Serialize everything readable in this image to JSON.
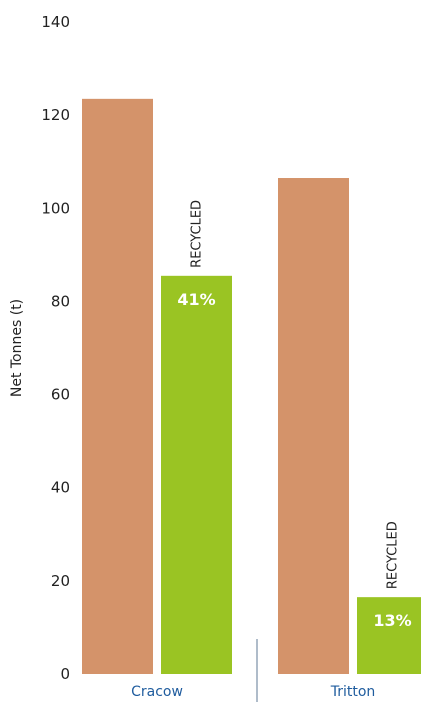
{
  "chart_data": {
    "type": "bar",
    "title": "",
    "xlabel": "",
    "ylabel": "Net Tonnes (t)",
    "ylim": [
      0,
      140
    ],
    "yticks": [
      0,
      20,
      40,
      60,
      80,
      100,
      120,
      140
    ],
    "grid": false,
    "legend": "none",
    "groups": [
      {
        "category": "Cracow",
        "bars": [
          {
            "value": 123.5
          },
          {
            "value": 85.5,
            "label": "RECYCLED",
            "percent": "41%"
          }
        ]
      },
      {
        "category": "Tritton",
        "bars": [
          {
            "value": 106.5
          },
          {
            "value": 16.5,
            "label": "RECYCLED",
            "percent": "13%"
          }
        ]
      }
    ],
    "colors": {
      "total": "#D4936A",
      "recycled": "#9AC423",
      "category_text": "#1F5C9E",
      "divider": "#7A8FA6"
    }
  }
}
